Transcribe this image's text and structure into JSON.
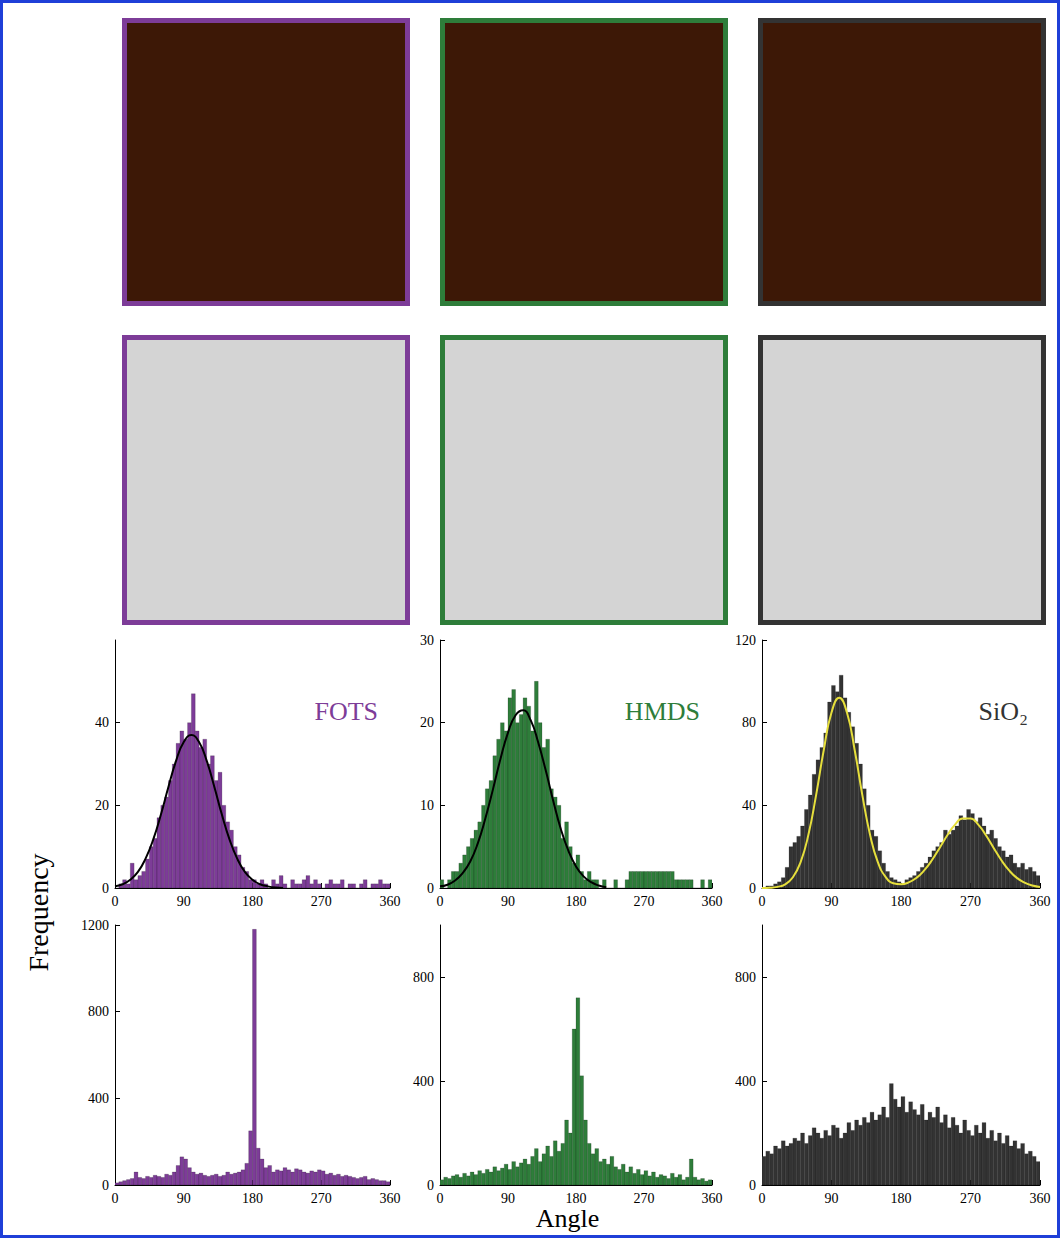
{
  "axis_titles": {
    "x": "Angle",
    "y": "Frequency"
  },
  "chart_data": [
    {
      "type": "histogram",
      "title": "FOTS",
      "color": "#7d3c98",
      "grid": false,
      "bins": [
        0,
        5,
        10,
        15,
        20,
        25,
        30,
        35,
        40,
        45,
        50,
        55,
        60,
        65,
        70,
        75,
        80,
        85,
        90,
        95,
        100,
        105,
        110,
        115,
        120,
        125,
        130,
        135,
        140,
        145,
        150,
        155,
        160,
        165,
        170,
        175,
        180,
        185,
        190,
        195,
        200,
        205,
        210,
        215,
        220,
        225,
        230,
        235,
        240,
        245,
        250,
        255,
        260,
        265,
        270,
        275,
        280,
        285,
        290,
        295,
        300,
        305,
        310,
        315,
        320,
        325,
        330,
        335,
        340,
        345,
        350,
        355,
        360
      ],
      "values": [
        0,
        1,
        2,
        1,
        6,
        2,
        3,
        4,
        7,
        10,
        12,
        17,
        20,
        22,
        26,
        30,
        35,
        38,
        36,
        40,
        47,
        38,
        34,
        36,
        30,
        32,
        26,
        28,
        20,
        16,
        14,
        10,
        8,
        5,
        4,
        2,
        2,
        1,
        2,
        1,
        0,
        2,
        1,
        3,
        1,
        0,
        2,
        1,
        1,
        2,
        3,
        1,
        2,
        1,
        0,
        1,
        2,
        1,
        1,
        2,
        0,
        1,
        1,
        0,
        1,
        2,
        0,
        1,
        1,
        2,
        1,
        1
      ],
      "xlim": [
        0,
        360
      ],
      "xticks": [
        0,
        90,
        180,
        270,
        360
      ],
      "ylim": [
        0,
        60
      ],
      "yticks": [
        0,
        20,
        40
      ],
      "fit": {
        "type": "line",
        "color": "#000000",
        "x": [
          0,
          10,
          20,
          30,
          40,
          50,
          60,
          70,
          80,
          90,
          100,
          110,
          120,
          130,
          140,
          150,
          160,
          170,
          180,
          190,
          200,
          210,
          220
        ],
        "values": [
          0.4,
          0.9,
          2.0,
          3.9,
          7.1,
          11.7,
          17.7,
          24.5,
          30.8,
          35.3,
          37,
          35.3,
          30.8,
          24.5,
          17.7,
          11.7,
          7.1,
          3.9,
          2.0,
          0.9,
          0.4,
          0.1,
          0
        ]
      }
    },
    {
      "type": "histogram",
      "title": "HMDS",
      "color": "#2e7d3a",
      "grid": false,
      "bins": [
        0,
        5,
        10,
        15,
        20,
        25,
        30,
        35,
        40,
        45,
        50,
        55,
        60,
        65,
        70,
        75,
        80,
        85,
        90,
        95,
        100,
        105,
        110,
        115,
        120,
        125,
        130,
        135,
        140,
        145,
        150,
        155,
        160,
        165,
        170,
        175,
        180,
        185,
        190,
        195,
        200,
        205,
        210,
        215,
        220,
        225,
        230,
        235,
        240,
        245,
        250,
        255,
        260,
        265,
        270,
        275,
        280,
        285,
        290,
        295,
        300,
        305,
        310,
        315,
        320,
        325,
        330,
        335,
        340,
        345,
        350,
        355,
        360
      ],
      "values": [
        1,
        0,
        1,
        2,
        2,
        3,
        4,
        5,
        6,
        7,
        8,
        10,
        12,
        13,
        16,
        18,
        20,
        19,
        23,
        24,
        20,
        21,
        23,
        22,
        19,
        25,
        20,
        17,
        18,
        12,
        11,
        10,
        6,
        8,
        5,
        3,
        4,
        2,
        1,
        2,
        1,
        1,
        0,
        1,
        0,
        0,
        1,
        0,
        0,
        1,
        2,
        2,
        2,
        2,
        2,
        2,
        2,
        2,
        2,
        2,
        2,
        2,
        1,
        1,
        1,
        1,
        1,
        0,
        0,
        1,
        0,
        1
      ],
      "xlim": [
        0,
        360
      ],
      "xticks": [
        0,
        90,
        180,
        270,
        360
      ],
      "ylim": [
        0,
        30
      ],
      "yticks": [
        0,
        10,
        20,
        30
      ],
      "fit": {
        "type": "line",
        "color": "#000000",
        "x": [
          0,
          10,
          20,
          30,
          40,
          50,
          60,
          70,
          80,
          90,
          100,
          110,
          120,
          130,
          140,
          150,
          160,
          170,
          180,
          190,
          200,
          210,
          220
        ],
        "values": [
          0.2,
          0.4,
          0.9,
          1.8,
          3.2,
          5.4,
          8.4,
          11.9,
          15.6,
          18.8,
          20.9,
          21.5,
          20.3,
          17.6,
          14.2,
          10.5,
          7.1,
          4.5,
          2.6,
          1.4,
          0.7,
          0.3,
          0.1
        ]
      }
    },
    {
      "type": "histogram",
      "title": "SiO₂",
      "color": "#333333",
      "grid": false,
      "bins": [
        0,
        5,
        10,
        15,
        20,
        25,
        30,
        35,
        40,
        45,
        50,
        55,
        60,
        65,
        70,
        75,
        80,
        85,
        90,
        95,
        100,
        105,
        110,
        115,
        120,
        125,
        130,
        135,
        140,
        145,
        150,
        155,
        160,
        165,
        170,
        175,
        180,
        185,
        190,
        195,
        200,
        205,
        210,
        215,
        220,
        225,
        230,
        235,
        240,
        245,
        250,
        255,
        260,
        265,
        270,
        275,
        280,
        285,
        290,
        295,
        300,
        305,
        310,
        315,
        320,
        325,
        330,
        335,
        340,
        345,
        350,
        355,
        360
      ],
      "values": [
        0,
        1,
        1,
        2,
        3,
        5,
        10,
        20,
        22,
        25,
        30,
        38,
        45,
        55,
        62,
        68,
        75,
        90,
        98,
        95,
        103,
        92,
        85,
        78,
        70,
        60,
        48,
        40,
        28,
        25,
        18,
        12,
        8,
        5,
        4,
        3,
        2,
        4,
        5,
        6,
        8,
        10,
        12,
        15,
        18,
        20,
        22,
        28,
        26,
        28,
        30,
        35,
        33,
        38,
        36,
        32,
        34,
        30,
        26,
        28,
        24,
        20,
        18,
        15,
        16,
        12,
        10,
        12,
        9,
        10,
        8,
        6
      ],
      "xlim": [
        0,
        360
      ],
      "xticks": [
        0,
        90,
        180,
        270,
        360
      ],
      "ylim": [
        0,
        120
      ],
      "yticks": [
        0,
        40,
        80,
        120
      ],
      "fit": {
        "type": "line",
        "color": "#e6df3c",
        "x": [
          0,
          10,
          20,
          30,
          40,
          50,
          60,
          70,
          80,
          90,
          100,
          110,
          120,
          130,
          140,
          150,
          160,
          170,
          180,
          190,
          200,
          210,
          220,
          230,
          240,
          250,
          260,
          270,
          280,
          290,
          300,
          310,
          320,
          330,
          340,
          350,
          360
        ],
        "values": [
          0,
          0.1,
          0.55,
          1.8,
          5.2,
          12.5,
          25.6,
          44.8,
          66.8,
          84.9,
          92,
          84.9,
          66.8,
          44.8,
          25.6,
          12.5,
          5.4,
          2.3,
          1.8,
          2.7,
          4.9,
          8.5,
          13.4,
          19.4,
          25.5,
          30.7,
          33.6,
          33.6,
          30.7,
          25.5,
          19.4,
          13.4,
          8.5,
          4.9,
          2.6,
          1.2,
          0.5
        ]
      }
    },
    {
      "type": "histogram",
      "color": "#7d3c98",
      "grid": false,
      "bins": [
        0,
        5,
        10,
        15,
        20,
        25,
        30,
        35,
        40,
        45,
        50,
        55,
        60,
        65,
        70,
        75,
        80,
        85,
        90,
        95,
        100,
        105,
        110,
        115,
        120,
        125,
        130,
        135,
        140,
        145,
        150,
        155,
        160,
        165,
        170,
        175,
        180,
        185,
        190,
        195,
        200,
        205,
        210,
        215,
        220,
        225,
        230,
        235,
        240,
        245,
        250,
        255,
        260,
        265,
        270,
        275,
        280,
        285,
        290,
        295,
        300,
        305,
        310,
        315,
        320,
        325,
        330,
        335,
        340,
        345,
        350,
        355,
        360
      ],
      "values": [
        10,
        15,
        20,
        25,
        30,
        60,
        35,
        30,
        40,
        35,
        45,
        40,
        35,
        50,
        45,
        60,
        90,
        130,
        120,
        80,
        60,
        50,
        55,
        45,
        40,
        45,
        50,
        40,
        45,
        60,
        50,
        55,
        60,
        70,
        100,
        250,
        1180,
        170,
        120,
        80,
        90,
        60,
        70,
        65,
        80,
        70,
        60,
        75,
        70,
        60,
        55,
        65,
        60,
        70,
        65,
        50,
        55,
        45,
        50,
        40,
        45,
        40,
        35,
        30,
        35,
        40,
        25,
        30,
        25,
        20,
        20,
        15
      ],
      "xlim": [
        0,
        360
      ],
      "xticks": [
        0,
        90,
        180,
        270,
        360
      ],
      "ylim": [
        0,
        1200
      ],
      "yticks": [
        0,
        400,
        800,
        1200
      ]
    },
    {
      "type": "histogram",
      "color": "#2e7d3a",
      "grid": false,
      "bins": [
        0,
        5,
        10,
        15,
        20,
        25,
        30,
        35,
        40,
        45,
        50,
        55,
        60,
        65,
        70,
        75,
        80,
        85,
        90,
        95,
        100,
        105,
        110,
        115,
        120,
        125,
        130,
        135,
        140,
        145,
        150,
        155,
        160,
        165,
        170,
        175,
        180,
        185,
        190,
        195,
        200,
        205,
        210,
        215,
        220,
        225,
        230,
        235,
        240,
        245,
        250,
        255,
        260,
        265,
        270,
        275,
        280,
        285,
        290,
        295,
        300,
        305,
        310,
        315,
        320,
        325,
        330,
        335,
        340,
        345,
        350,
        355,
        360
      ],
      "values": [
        20,
        30,
        25,
        35,
        40,
        30,
        45,
        35,
        50,
        40,
        55,
        45,
        60,
        50,
        70,
        55,
        65,
        80,
        60,
        90,
        70,
        85,
        100,
        80,
        110,
        140,
        90,
        120,
        150,
        110,
        170,
        130,
        160,
        250,
        200,
        600,
        720,
        420,
        250,
        160,
        120,
        140,
        90,
        100,
        80,
        110,
        70,
        60,
        80,
        50,
        70,
        45,
        60,
        40,
        55,
        35,
        50,
        30,
        40,
        35,
        25,
        45,
        30,
        40,
        20,
        30,
        100,
        30,
        20,
        25,
        15,
        20
      ],
      "xlim": [
        0,
        360
      ],
      "xticks": [
        0,
        90,
        180,
        270,
        360
      ],
      "ylim": [
        0,
        1000
      ],
      "yticks": [
        0,
        400,
        800
      ]
    },
    {
      "type": "histogram",
      "color": "#333333",
      "grid": false,
      "bins": [
        0,
        5,
        10,
        15,
        20,
        25,
        30,
        35,
        40,
        45,
        50,
        55,
        60,
        65,
        70,
        75,
        80,
        85,
        90,
        95,
        100,
        105,
        110,
        115,
        120,
        125,
        130,
        135,
        140,
        145,
        150,
        155,
        160,
        165,
        170,
        175,
        180,
        185,
        190,
        195,
        200,
        205,
        210,
        215,
        220,
        225,
        230,
        235,
        240,
        245,
        250,
        255,
        260,
        265,
        270,
        275,
        280,
        285,
        290,
        295,
        300,
        305,
        310,
        315,
        320,
        325,
        330,
        335,
        340,
        345,
        350,
        355,
        360
      ],
      "values": [
        110,
        130,
        120,
        150,
        140,
        170,
        150,
        160,
        180,
        170,
        200,
        160,
        190,
        220,
        200,
        180,
        210,
        190,
        230,
        220,
        180,
        200,
        240,
        210,
        250,
        230,
        260,
        240,
        280,
        250,
        270,
        300,
        260,
        390,
        330,
        300,
        340,
        280,
        320,
        290,
        270,
        310,
        250,
        280,
        260,
        300,
        240,
        270,
        220,
        260,
        230,
        200,
        250,
        210,
        190,
        230,
        200,
        240,
        180,
        210,
        170,
        200,
        160,
        190,
        150,
        170,
        140,
        160,
        120,
        130,
        110,
        90
      ],
      "xlim": [
        0,
        360
      ],
      "xticks": [
        0,
        90,
        180,
        270,
        360
      ],
      "ylim": [
        0,
        1000
      ],
      "yticks": [
        0,
        400,
        800
      ]
    }
  ]
}
